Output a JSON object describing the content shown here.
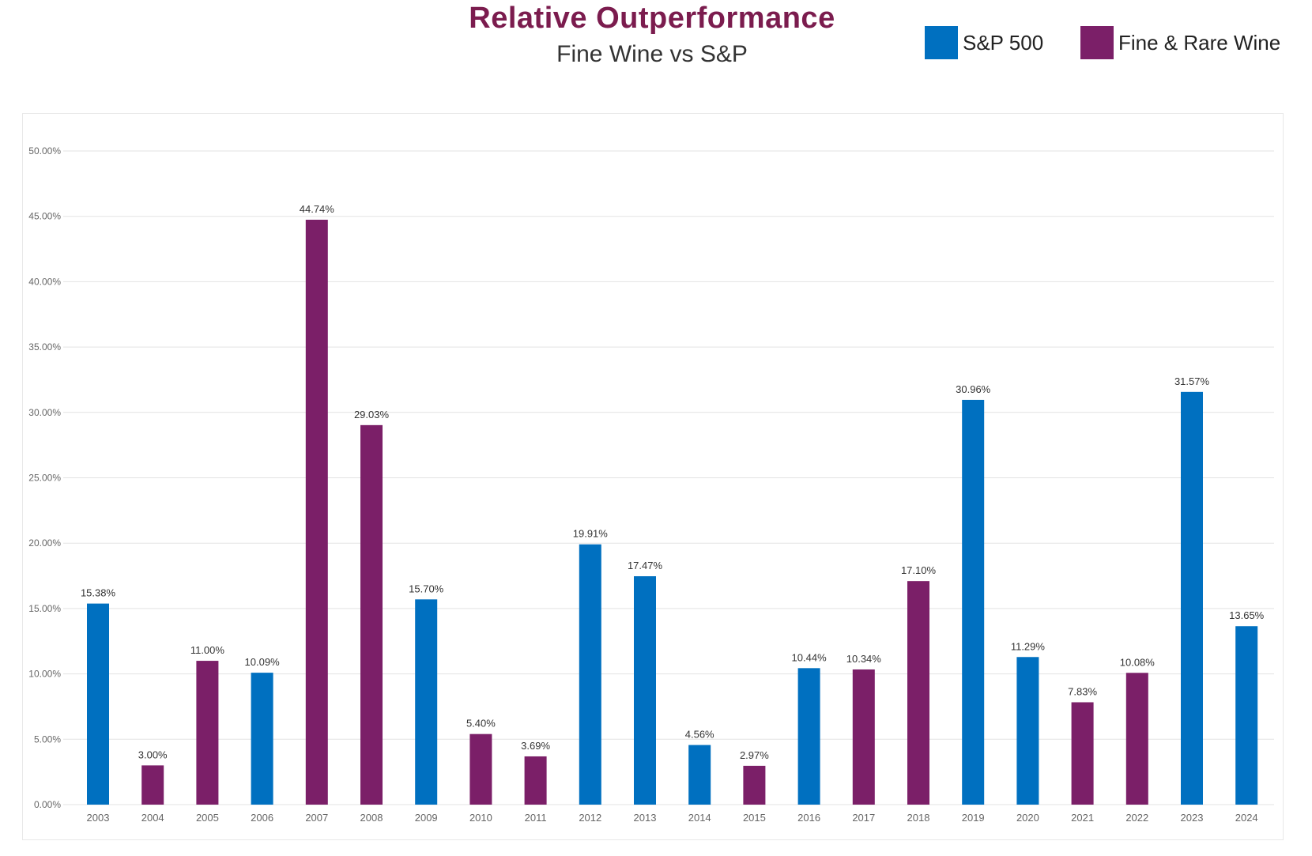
{
  "chart_data": {
    "type": "bar",
    "title": "Relative Outperformance",
    "subtitle": "Fine Wine vs S&P",
    "legend": {
      "placement": "top-right",
      "items": [
        {
          "name": "S&P 500",
          "color": "#0070c0"
        },
        {
          "name": "Fine & Rare Wine",
          "color": "#7b1f68"
        }
      ]
    },
    "xlabel": "",
    "ylabel": "",
    "ylim": [
      0,
      50
    ],
    "yticks": [
      "0.00%",
      "5.00%",
      "10.00%",
      "15.00%",
      "20.00%",
      "25.00%",
      "30.00%",
      "35.00%",
      "40.00%",
      "45.00%",
      "50.00%"
    ],
    "grid": true,
    "categories": [
      "2003",
      "2004",
      "2005",
      "2006",
      "2007",
      "2008",
      "2009",
      "2010",
      "2011",
      "2012",
      "2013",
      "2014",
      "2015",
      "2016",
      "2017",
      "2018",
      "2019",
      "2020",
      "2021",
      "2022",
      "2023",
      "2024"
    ],
    "values": [
      15.38,
      3.0,
      11.0,
      10.09,
      44.74,
      29.03,
      15.7,
      5.4,
      3.69,
      19.91,
      17.47,
      4.56,
      2.97,
      10.44,
      10.34,
      17.1,
      30.96,
      11.29,
      7.83,
      10.08,
      31.57,
      13.65
    ],
    "labels": [
      "15.38%",
      "3.00%",
      "11.00%",
      "10.09%",
      "44.74%",
      "29.03%",
      "15.70%",
      "5.40%",
      "3.69%",
      "19.91%",
      "17.47%",
      "4.56%",
      "2.97%",
      "10.44%",
      "10.34%",
      "17.10%",
      "30.96%",
      "11.29%",
      "7.83%",
      "10.08%",
      "31.57%",
      "13.65%"
    ],
    "winner": [
      "S&P 500",
      "Fine & Rare Wine",
      "Fine & Rare Wine",
      "S&P 500",
      "Fine & Rare Wine",
      "Fine & Rare Wine",
      "S&P 500",
      "Fine & Rare Wine",
      "Fine & Rare Wine",
      "S&P 500",
      "S&P 500",
      "S&P 500",
      "Fine & Rare Wine",
      "S&P 500",
      "Fine & Rare Wine",
      "Fine & Rare Wine",
      "S&P 500",
      "S&P 500",
      "Fine & Rare Wine",
      "Fine & Rare Wine",
      "S&P 500",
      "S&P 500"
    ]
  },
  "colors": {
    "title": "#7b1c4e",
    "grid": "#e3e3e3",
    "tick_text": "#666666",
    "label_text": "#333333"
  }
}
